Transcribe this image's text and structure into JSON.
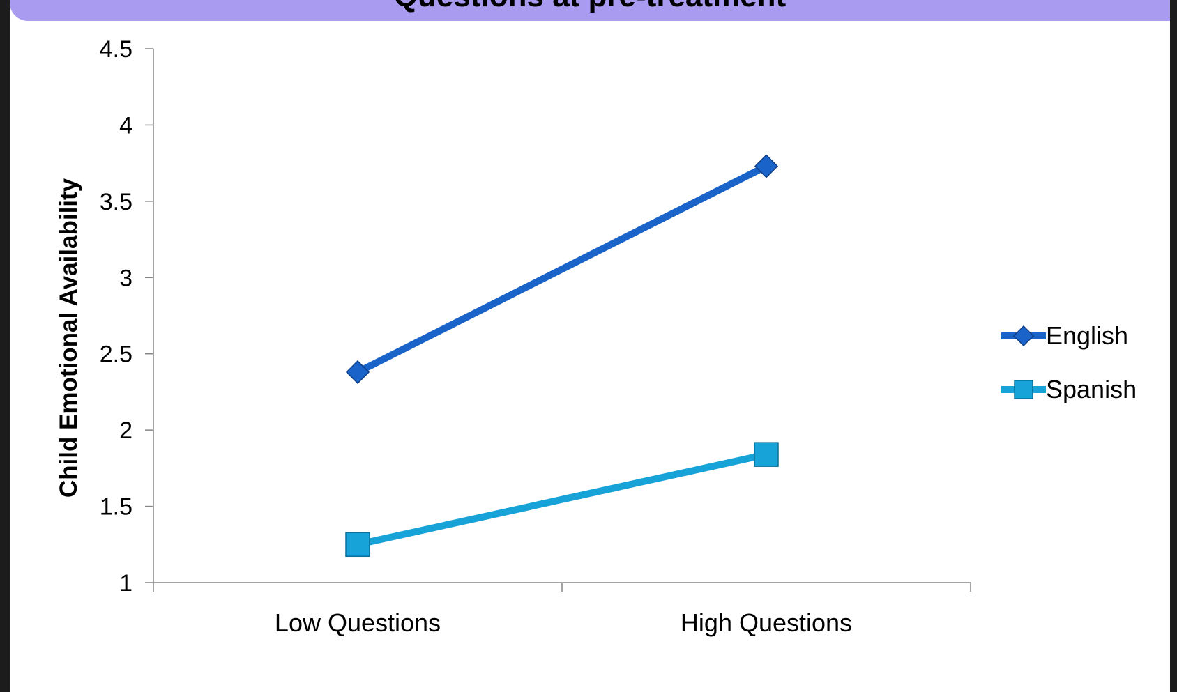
{
  "chart_data": {
    "type": "line",
    "title": "Questions at pre-treatment",
    "xlabel": "",
    "ylabel": "Child Emotional Availability",
    "categories": [
      "Low Questions",
      "High Questions"
    ],
    "ylim": [
      1,
      4.5
    ],
    "yticks": [
      "1",
      "1.5",
      "2",
      "2.5",
      "3",
      "3.5",
      "4",
      "4.5"
    ],
    "grid": false,
    "legend_position": "right",
    "series": [
      {
        "name": "English",
        "values": [
          2.38,
          3.73
        ],
        "color": "#1a63c8",
        "marker": "diamond"
      },
      {
        "name": "Spanish",
        "values": [
          1.25,
          1.84
        ],
        "color": "#17a2d8",
        "marker": "square"
      }
    ]
  }
}
